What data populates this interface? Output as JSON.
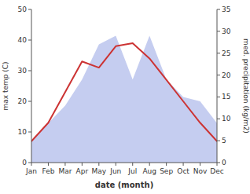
{
  "chart_data": {
    "type": "line",
    "xlabel": "date (month)",
    "ylabel": "max temp (C)",
    "y2label": "med. precipitation (kg/m2)",
    "categories": [
      "Jan",
      "Feb",
      "Mar",
      "Apr",
      "May",
      "Jun",
      "Jul",
      "Aug",
      "Sep",
      "Oct",
      "Nov",
      "Dec"
    ],
    "series": [
      {
        "type": "area",
        "axis": "y2",
        "color": "#c5cdf0",
        "values": [
          5,
          9,
          13,
          19,
          27,
          29,
          19,
          29,
          19,
          15,
          14,
          9
        ]
      },
      {
        "type": "line",
        "color": "#cc3333",
        "values": [
          7,
          13,
          23,
          33,
          31,
          38,
          39,
          34,
          27,
          20,
          13,
          7
        ]
      }
    ],
    "ylim": [
      0,
      50
    ],
    "yticks": [
      0,
      10,
      20,
      30,
      40,
      50
    ],
    "y2lim": [
      0,
      35
    ],
    "y2ticks": [
      0,
      5,
      10,
      15,
      20,
      25,
      30,
      35
    ],
    "grid": false
  }
}
